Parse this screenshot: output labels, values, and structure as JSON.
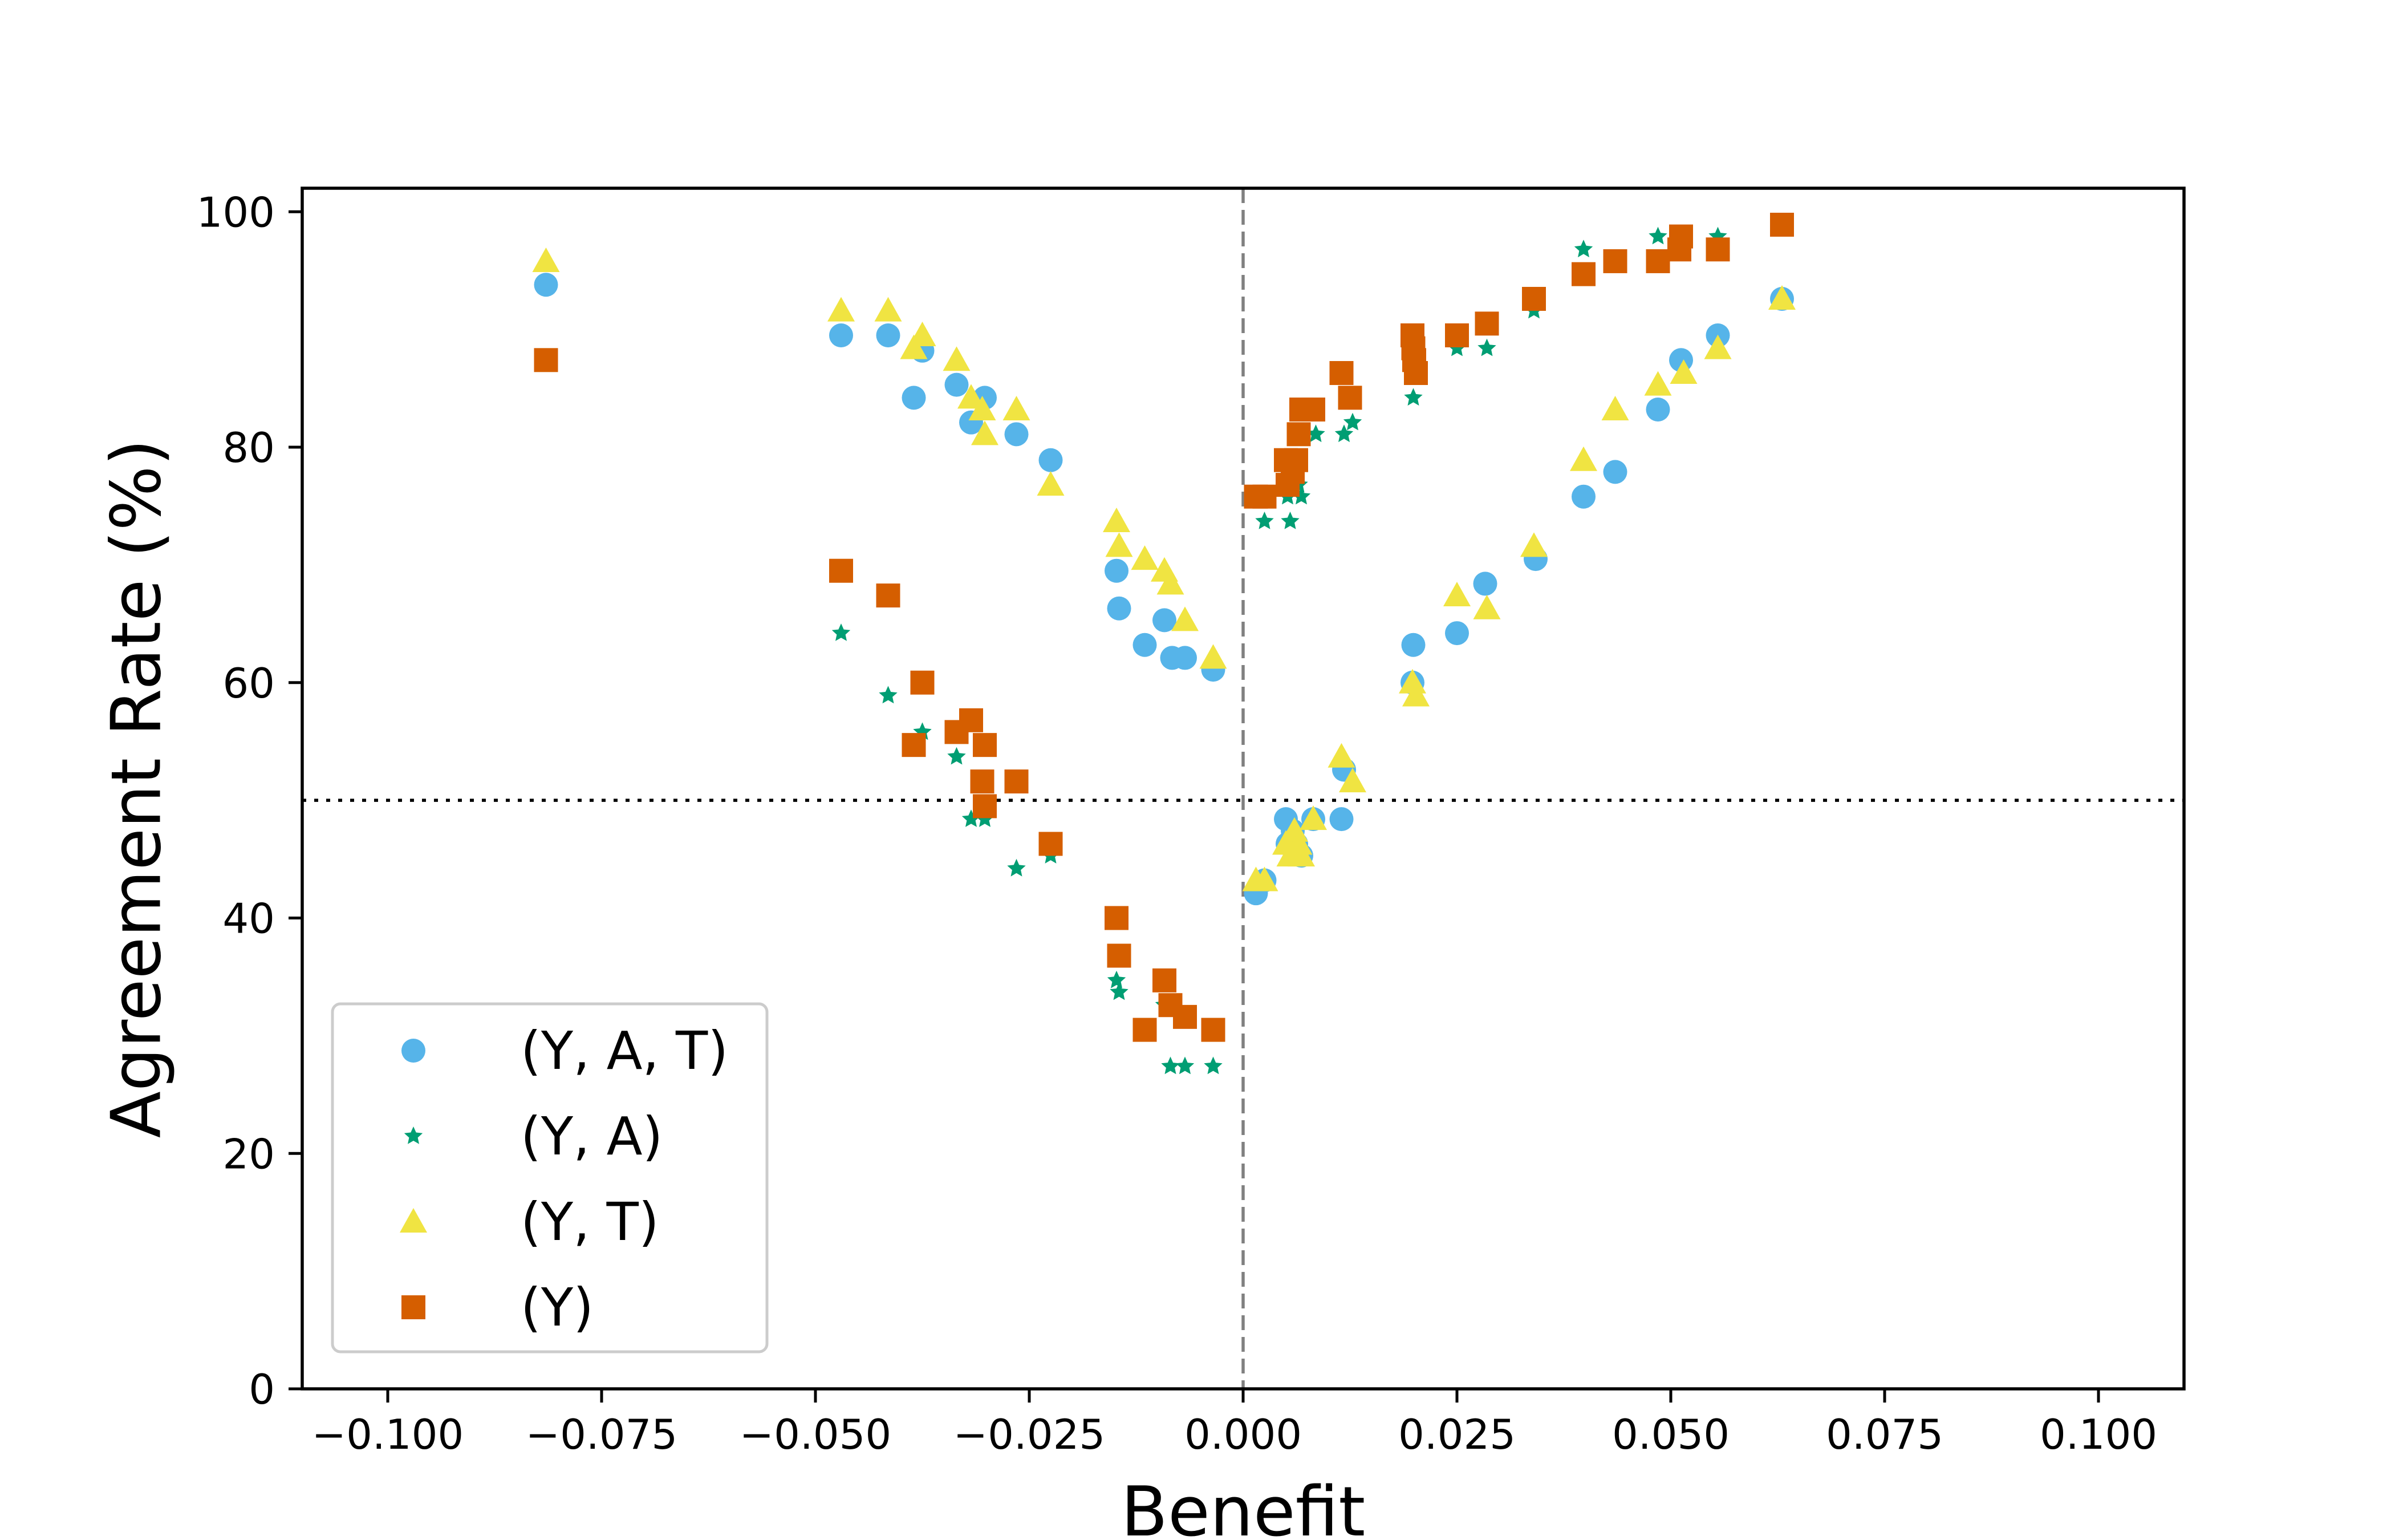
{
  "chart_data": {
    "type": "scatter",
    "title": "",
    "xlabel": "Benefit",
    "ylabel": "Agreement Rate (%)",
    "xlim": [
      -0.11,
      0.11
    ],
    "ylim": [
      0,
      102
    ],
    "xticks": [
      -0.1,
      -0.075,
      -0.05,
      -0.025,
      0.0,
      0.025,
      0.05,
      0.075,
      0.1
    ],
    "xtick_labels": [
      "−0.100",
      "−0.075",
      "−0.050",
      "−0.025",
      "0.000",
      "0.025",
      "0.050",
      "0.075",
      "0.100"
    ],
    "yticks": [
      0,
      20,
      40,
      60,
      80,
      100
    ],
    "ytick_labels": [
      "0",
      "20",
      "40",
      "60",
      "80",
      "100"
    ],
    "reference_lines": [
      {
        "orientation": "vertical",
        "value": 0.0,
        "style": "dashed",
        "color": "#808080"
      },
      {
        "orientation": "horizontal",
        "value": 50,
        "style": "dotted",
        "color": "#000000"
      }
    ],
    "legend_position": "lower-left",
    "grid": false,
    "series": [
      {
        "name": "(Y, A, T)",
        "marker": "circle",
        "color": "#56B4E9",
        "points": [
          [
            -0.0815,
            93.8
          ],
          [
            -0.047,
            89.5
          ],
          [
            -0.0415,
            89.5
          ],
          [
            -0.0385,
            84.2
          ],
          [
            -0.0375,
            88.2
          ],
          [
            -0.0335,
            85.3
          ],
          [
            -0.0318,
            82.1
          ],
          [
            -0.0302,
            84.2
          ],
          [
            -0.0265,
            81.1
          ],
          [
            -0.0225,
            78.9
          ],
          [
            -0.0148,
            69.5
          ],
          [
            -0.0145,
            66.3
          ],
          [
            -0.0115,
            63.2
          ],
          [
            -0.0092,
            65.3
          ],
          [
            -0.0083,
            62.1
          ],
          [
            -0.0068,
            62.1
          ],
          [
            -0.0035,
            61.1
          ],
          [
            0.0015,
            42.1
          ],
          [
            0.0025,
            43.2
          ],
          [
            0.005,
            48.4
          ],
          [
            0.0052,
            46.3
          ],
          [
            0.0058,
            47.4
          ],
          [
            0.0062,
            46.3
          ],
          [
            0.0068,
            45.3
          ],
          [
            0.0082,
            48.4
          ],
          [
            0.0115,
            48.4
          ],
          [
            0.0118,
            52.6
          ],
          [
            0.0198,
            60.0
          ],
          [
            0.0199,
            63.2
          ],
          [
            0.025,
            64.2
          ],
          [
            0.0283,
            68.4
          ],
          [
            0.0342,
            70.5
          ],
          [
            0.0398,
            75.8
          ],
          [
            0.0435,
            77.9
          ],
          [
            0.0485,
            83.2
          ],
          [
            0.0512,
            87.4
          ],
          [
            0.0555,
            89.5
          ],
          [
            0.063,
            92.6
          ]
        ]
      },
      {
        "name": "(Y, A)",
        "marker": "star",
        "color": "#009E73",
        "points": [
          [
            -0.047,
            64.2
          ],
          [
            -0.0415,
            58.9
          ],
          [
            -0.0375,
            55.8
          ],
          [
            -0.0335,
            53.7
          ],
          [
            -0.0318,
            48.4
          ],
          [
            -0.0302,
            48.4
          ],
          [
            -0.0265,
            44.2
          ],
          [
            -0.0225,
            45.3
          ],
          [
            -0.0148,
            34.7
          ],
          [
            -0.0145,
            33.7
          ],
          [
            -0.0092,
            32.6
          ],
          [
            -0.0085,
            27.4
          ],
          [
            -0.0068,
            27.4
          ],
          [
            -0.0035,
            27.4
          ],
          [
            0.0025,
            73.7
          ],
          [
            0.0052,
            75.8
          ],
          [
            0.0055,
            73.7
          ],
          [
            0.0065,
            76.8
          ],
          [
            0.0068,
            75.8
          ],
          [
            0.0085,
            81.1
          ],
          [
            0.0118,
            81.1
          ],
          [
            0.0128,
            82.1
          ],
          [
            0.0199,
            84.2
          ],
          [
            0.025,
            88.4
          ],
          [
            0.0285,
            88.4
          ],
          [
            0.034,
            91.6
          ],
          [
            0.0398,
            96.8
          ],
          [
            0.0485,
            97.9
          ],
          [
            0.0555,
            97.9
          ]
        ]
      },
      {
        "name": "(Y, T)",
        "marker": "triangle",
        "color": "#F0E442",
        "points": [
          [
            -0.0815,
            95.8
          ],
          [
            -0.047,
            91.6
          ],
          [
            -0.0415,
            91.6
          ],
          [
            -0.0385,
            88.4
          ],
          [
            -0.0375,
            89.5
          ],
          [
            -0.0335,
            87.4
          ],
          [
            -0.0318,
            84.2
          ],
          [
            -0.0305,
            83.2
          ],
          [
            -0.0302,
            81.1
          ],
          [
            -0.0265,
            83.2
          ],
          [
            -0.0225,
            76.8
          ],
          [
            -0.0148,
            73.7
          ],
          [
            -0.0145,
            71.6
          ],
          [
            -0.0115,
            70.5
          ],
          [
            -0.0092,
            69.5
          ],
          [
            -0.0085,
            68.4
          ],
          [
            -0.0068,
            65.3
          ],
          [
            -0.0035,
            62.1
          ],
          [
            0.0015,
            43.2
          ],
          [
            0.0025,
            43.2
          ],
          [
            0.005,
            46.3
          ],
          [
            0.0055,
            45.3
          ],
          [
            0.006,
            47.4
          ],
          [
            0.0065,
            46.3
          ],
          [
            0.0068,
            45.3
          ],
          [
            0.0082,
            48.4
          ],
          [
            0.0115,
            53.7
          ],
          [
            0.0128,
            51.6
          ],
          [
            0.0198,
            60.0
          ],
          [
            0.0202,
            58.9
          ],
          [
            0.025,
            67.4
          ],
          [
            0.0285,
            66.3
          ],
          [
            0.034,
            71.6
          ],
          [
            0.0398,
            78.9
          ],
          [
            0.0435,
            83.2
          ],
          [
            0.0485,
            85.3
          ],
          [
            0.0515,
            86.3
          ],
          [
            0.0555,
            88.4
          ],
          [
            0.063,
            92.6
          ]
        ]
      },
      {
        "name": "(Y)",
        "marker": "square",
        "color": "#D55E00",
        "points": [
          [
            -0.0815,
            87.4
          ],
          [
            -0.047,
            69.5
          ],
          [
            -0.0415,
            67.4
          ],
          [
            -0.0385,
            54.7
          ],
          [
            -0.0375,
            60.0
          ],
          [
            -0.0335,
            55.8
          ],
          [
            -0.0318,
            56.8
          ],
          [
            -0.0305,
            51.6
          ],
          [
            -0.0302,
            54.7
          ],
          [
            -0.0302,
            49.5
          ],
          [
            -0.0265,
            51.6
          ],
          [
            -0.0225,
            46.3
          ],
          [
            -0.0148,
            40.0
          ],
          [
            -0.0145,
            36.8
          ],
          [
            -0.0115,
            30.5
          ],
          [
            -0.0092,
            34.7
          ],
          [
            -0.0085,
            32.6
          ],
          [
            -0.0068,
            31.6
          ],
          [
            -0.0035,
            30.5
          ],
          [
            0.0015,
            75.8
          ],
          [
            0.0025,
            75.8
          ],
          [
            0.005,
            78.9
          ],
          [
            0.0052,
            76.8
          ],
          [
            0.0058,
            77.9
          ],
          [
            0.0062,
            78.9
          ],
          [
            0.0065,
            81.1
          ],
          [
            0.0068,
            83.2
          ],
          [
            0.0082,
            83.2
          ],
          [
            0.0115,
            86.3
          ],
          [
            0.0125,
            84.2
          ],
          [
            0.0198,
            89.5
          ],
          [
            0.0199,
            88.4
          ],
          [
            0.02,
            87.4
          ],
          [
            0.0202,
            86.3
          ],
          [
            0.025,
            89.5
          ],
          [
            0.0285,
            90.5
          ],
          [
            0.034,
            92.6
          ],
          [
            0.0398,
            94.7
          ],
          [
            0.0435,
            95.8
          ],
          [
            0.0485,
            95.8
          ],
          [
            0.051,
            96.8
          ],
          [
            0.0512,
            97.9
          ],
          [
            0.0555,
            96.8
          ],
          [
            0.063,
            98.9
          ]
        ]
      }
    ]
  }
}
